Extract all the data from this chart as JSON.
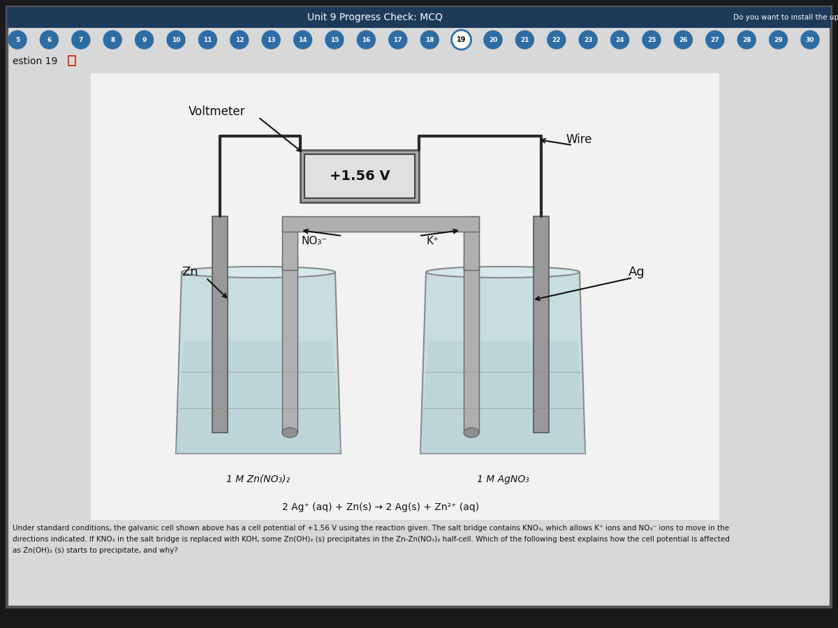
{
  "bg_dark": "#1a1a1a",
  "screen_bg": "#d8d8d8",
  "title_bar_bg": "#1e3a5a",
  "title_text": "Unit 9 Progress Check: MCQ",
  "top_right_text": "Do you want to install the updates",
  "question_label": "estion 19",
  "nav_numbers": [
    "5",
    "6",
    "7",
    "8",
    "9",
    "10",
    "11",
    "12",
    "13",
    "14",
    "15",
    "16",
    "17",
    "18",
    "19",
    "20",
    "21",
    "22",
    "23",
    "24",
    "25",
    "26",
    "27",
    "28",
    "29",
    "30"
  ],
  "nav_active": "19",
  "nav_circle_color": "#2e6da4",
  "nav_active_bg": "#ffffff",
  "voltmeter_label": "Voltmeter",
  "wire_label": "Wire",
  "voltage_text": "+1.56 V",
  "no3_label": "NO₃⁻",
  "kplus_label": "K⁺",
  "zn_label": "Zn",
  "ag_label": "Ag",
  "left_solution": "1 M Zn(NO₃)₂",
  "right_solution": "1 M AgNO₃",
  "reaction": "2 Ag⁺ (aq) + Zn(s) → 2 Ag(s) + Zn²⁺ (aq)",
  "paragraph_line1": "Under standard conditions, the galvanic cell shown above has a cell potential of +1.56 V using the reaction given. The salt bridge contains KNO₃, which allows K⁺ ions and NO₃⁻ ions to move in the",
  "paragraph_line2": "directions indicated. If KNO₃ in the salt bridge is replaced with KOH, some Zn(OH)₂ (s) precipitates in the Zn-Zn(NO₃)₂ half-cell. Which of the following best explains how the cell potential is affected",
  "paragraph_line3": "as Zn(OH)₂ (s) starts to precipitate, and why?",
  "diagram_bg": "#f2f2f2",
  "beaker_face": "#c8dde0",
  "beaker_edge": "#888888",
  "electrode_face": "#999999",
  "electrode_edge": "#555555",
  "wire_color": "#2a2a2a",
  "salt_face": "#b0b0b0",
  "salt_edge": "#666666",
  "vm_face": "#a8a8a8",
  "vm_inner_face": "#e0e0e0"
}
